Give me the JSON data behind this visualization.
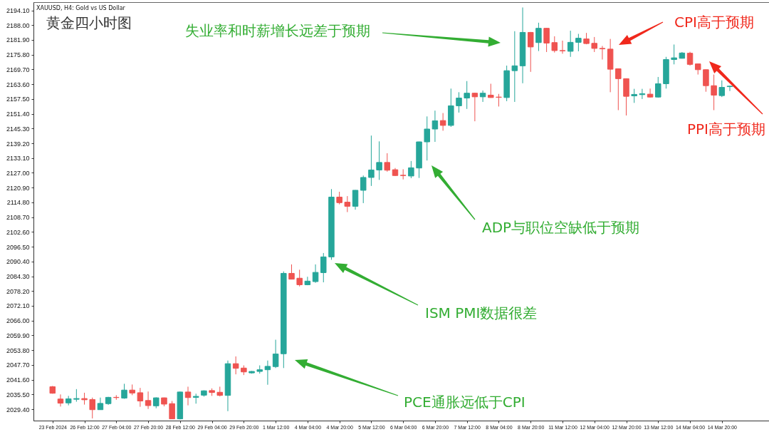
{
  "chart_data": {
    "type": "candlestick",
    "title": "黄金四小时图",
    "subtitle": "XAUUSD, H4: Gold vs US Dollar",
    "categories": [
      "23 Feb 2024",
      null,
      null,
      null,
      "26 Feb 12:00",
      null,
      null,
      null,
      "27 Feb 04:00",
      null,
      null,
      null,
      "27 Feb 20:00",
      null,
      null,
      null,
      "28 Feb 12:00",
      null,
      null,
      null,
      "29 Feb 04:00",
      null,
      null,
      null,
      "29 Feb 20:00",
      null,
      null,
      null,
      "1 Mar 12:00",
      null,
      null,
      null,
      "4 Mar 04:00",
      null,
      null,
      null,
      "4 Mar 20:00",
      null,
      null,
      null,
      "5 Mar 12:00",
      null,
      null,
      null,
      "6 Mar 04:00",
      null,
      null,
      null,
      "6 Mar 20:00",
      null,
      null,
      null,
      "7 Mar 12:00",
      null,
      null,
      null,
      "8 Mar 04:00",
      null,
      null,
      null,
      "8 Mar 20:00",
      null,
      null,
      null,
      "11 Mar 12:00",
      null,
      null,
      null,
      "12 Mar 04:00",
      null,
      null,
      null,
      "12 Mar 20:00",
      null,
      null,
      null,
      "13 Mar 12:00",
      null,
      null,
      null,
      "14 Mar 04:00",
      null,
      null,
      null,
      "14 Mar 20:00",
      null
    ],
    "ohlc": [
      [
        2038.7,
        2039.0,
        2035.8,
        2036.0
      ],
      [
        2033.6,
        2035.5,
        2030.5,
        2031.9
      ],
      [
        2032.0,
        2034.9,
        2031.0,
        2033.7
      ],
      [
        2033.5,
        2037.7,
        2032.5,
        2033.8
      ],
      [
        2033.8,
        2036.2,
        2031.3,
        2033.3
      ],
      [
        2033.4,
        2034.2,
        2025.6,
        2029.2
      ],
      [
        2029.2,
        2034.2,
        2029.2,
        2031.8
      ],
      [
        2031.7,
        2034.5,
        2031.2,
        2034.3
      ],
      [
        2034.3,
        2035.2,
        2033.3,
        2034.2
      ],
      [
        2034.0,
        2039.9,
        2033.7,
        2037.3
      ],
      [
        2037.3,
        2039.6,
        2035.2,
        2036.1
      ],
      [
        2036.2,
        2038.2,
        2030.4,
        2032.8
      ],
      [
        2033.0,
        2036.7,
        2029.5,
        2030.9
      ],
      [
        2030.8,
        2034.3,
        2029.8,
        2034.1
      ],
      [
        2034.1,
        2034.2,
        2030.6,
        2031.5
      ],
      [
        2031.7,
        2032.8,
        2025.3,
        2025.4
      ],
      [
        2025.4,
        2036.7,
        2025.2,
        2036.5
      ],
      [
        2036.5,
        2038.7,
        2031.0,
        2034.2
      ],
      [
        2034.3,
        2035.8,
        2031.7,
        2034.7
      ],
      [
        2035.2,
        2037.2,
        2034.6,
        2037.0
      ],
      [
        2037.1,
        2038.0,
        2034.9,
        2036.3
      ],
      [
        2036.4,
        2038.7,
        2034.7,
        2035.1
      ],
      [
        2035.1,
        2049.5,
        2028.6,
        2048.2
      ],
      [
        2048.2,
        2051.2,
        2043.8,
        2046.3
      ],
      [
        2046.4,
        2047.5,
        2043.5,
        2044.8
      ],
      [
        2044.4,
        2045.2,
        2044.1,
        2045.0
      ],
      [
        2045.0,
        2047.5,
        2044.1,
        2045.7
      ],
      [
        2045.7,
        2049.5,
        2039.5,
        2047.1
      ],
      [
        2047.0,
        2058.1,
        2046.4,
        2052.2
      ],
      [
        2052.3,
        2086.3,
        2046.4,
        2085.5
      ],
      [
        2085.5,
        2089.2,
        2083.0,
        2083.1
      ],
      [
        2083.5,
        2087.0,
        2080.1,
        2080.8
      ],
      [
        2080.8,
        2084.1,
        2080.6,
        2082.3
      ],
      [
        2082.1,
        2089.2,
        2081.6,
        2085.9
      ],
      [
        2085.8,
        2093.9,
        2081.8,
        2092.3
      ],
      [
        2092.3,
        2120.3,
        2091.1,
        2117.0
      ],
      [
        2117.0,
        2119.2,
        2114.0,
        2114.7
      ],
      [
        2114.9,
        2117.4,
        2110.8,
        2113.2
      ],
      [
        2113.2,
        2119.9,
        2111.8,
        2119.8
      ],
      [
        2119.8,
        2125.9,
        2114.5,
        2125.1
      ],
      [
        2125.1,
        2142.4,
        2121.6,
        2128.2
      ],
      [
        2128.2,
        2140.0,
        2124.1,
        2131.3
      ],
      [
        2131.3,
        2135.1,
        2127.5,
        2128.1
      ],
      [
        2128.3,
        2129.0,
        2125.7,
        2125.9
      ],
      [
        2126.0,
        2128.5,
        2124.3,
        2125.9
      ],
      [
        2125.7,
        2131.9,
        2124.8,
        2129.1
      ],
      [
        2129.0,
        2139.9,
        2124.9,
        2139.8
      ],
      [
        2139.8,
        2150.3,
        2132.1,
        2145.1
      ],
      [
        2145.1,
        2152.7,
        2139.8,
        2148.5
      ],
      [
        2148.6,
        2151.7,
        2144.4,
        2146.6
      ],
      [
        2146.6,
        2161.8,
        2146.0,
        2154.7
      ],
      [
        2154.7,
        2160.3,
        2151.9,
        2157.9
      ],
      [
        2157.9,
        2164.9,
        2153.4,
        2159.9
      ],
      [
        2159.9,
        2160.1,
        2148.3,
        2158.4
      ],
      [
        2158.4,
        2161.0,
        2156.3,
        2159.9
      ],
      [
        2159.1,
        2163.8,
        2158.0,
        2158.1
      ],
      [
        2158.3,
        2159.6,
        2154.4,
        2158.2
      ],
      [
        2158.1,
        2171.3,
        2156.6,
        2169.2
      ],
      [
        2169.2,
        2185.5,
        2156.3,
        2171.2
      ],
      [
        2171.2,
        2195.3,
        2164.0,
        2185.0
      ],
      [
        2185.0,
        2185.2,
        2168.7,
        2179.0
      ],
      [
        2180.8,
        2189.0,
        2177.3,
        2186.7
      ],
      [
        2186.7,
        2186.8,
        2176.9,
        2180.6
      ],
      [
        2180.8,
        2183.4,
        2176.7,
        2177.5
      ],
      [
        2177.5,
        2181.6,
        2176.2,
        2177.4
      ],
      [
        2177.2,
        2185.7,
        2174.9,
        2180.9
      ],
      [
        2180.9,
        2184.4,
        2177.2,
        2182.6
      ],
      [
        2182.3,
        2184.8,
        2180.1,
        2180.4
      ],
      [
        2180.5,
        2183.1,
        2176.9,
        2178.4
      ],
      [
        2178.4,
        2179.4,
        2173.8,
        2178.2
      ],
      [
        2178.1,
        2182.3,
        2160.3,
        2169.8
      ],
      [
        2170.0,
        2170.1,
        2152.9,
        2165.9
      ],
      [
        2165.9,
        2166.0,
        2150.7,
        2158.6
      ],
      [
        2158.8,
        2161.7,
        2155.9,
        2159.4
      ],
      [
        2159.3,
        2161.7,
        2157.5,
        2159.7
      ],
      [
        2159.5,
        2161.8,
        2158.1,
        2158.3
      ],
      [
        2158.3,
        2166.6,
        2158.1,
        2163.8
      ],
      [
        2163.8,
        2174.9,
        2161.8,
        2173.8
      ],
      [
        2173.8,
        2180.0,
        2171.8,
        2174.5
      ],
      [
        2174.3,
        2176.9,
        2174.2,
        2176.5
      ],
      [
        2176.4,
        2177.0,
        2171.3,
        2171.8
      ],
      [
        2172.0,
        2172.1,
        2167.6,
        2169.6
      ],
      [
        2169.6,
        2169.7,
        2160.5,
        2163.0
      ],
      [
        2163.0,
        2167.6,
        2152.9,
        2159.1
      ],
      [
        2158.9,
        2165.2,
        2158.3,
        2162.3
      ],
      [
        2162.6,
        2163.0,
        2160.8,
        2162.8
      ]
    ],
    "colors": [
      "#ef5350",
      "#ef5350",
      "#26a69a",
      "#26a69a",
      "#ef5350",
      "#ef5350",
      "#26a69a",
      "#26a69a",
      "#ef5350",
      "#26a69a",
      "#ef5350",
      "#ef5350",
      "#ef5350",
      "#26a69a",
      "#ef5350",
      "#ef5350",
      "#26a69a",
      "#ef5350",
      "#26a69a",
      "#26a69a",
      "#ef5350",
      "#ef5350",
      "#26a69a",
      "#ef5350",
      "#ef5350",
      "#26a69a",
      "#26a69a",
      "#26a69a",
      "#26a69a",
      "#26a69a",
      "#ef5350",
      "#ef5350",
      "#26a69a",
      "#26a69a",
      "#26a69a",
      "#26a69a",
      "#ef5350",
      "#ef5350",
      "#26a69a",
      "#26a69a",
      "#26a69a",
      "#26a69a",
      "#ef5350",
      "#ef5350",
      "#ef5350",
      "#26a69a",
      "#26a69a",
      "#26a69a",
      "#26a69a",
      "#ef5350",
      "#26a69a",
      "#26a69a",
      "#26a69a",
      "#ef5350",
      "#26a69a",
      "#ef5350",
      "#ef5350",
      "#26a69a",
      "#26a69a",
      "#26a69a",
      "#ef5350",
      "#26a69a",
      "#ef5350",
      "#ef5350",
      "#ef5350",
      "#26a69a",
      "#26a69a",
      "#ef5350",
      "#ef5350",
      "#ef5350",
      "#ef5350",
      "#ef5350",
      "#ef5350",
      "#26a69a",
      "#26a69a",
      "#ef5350",
      "#26a69a",
      "#26a69a",
      "#26a69a",
      "#26a69a",
      "#ef5350",
      "#ef5350",
      "#ef5350",
      "#ef5350",
      "#26a69a",
      "#26a69a"
    ],
    "ylim": [
      2024.7,
      2197.5
    ],
    "yticks": [
      {
        "value": 2029.4,
        "label": "2029.40"
      },
      {
        "value": 2035.5,
        "label": "2035.50"
      },
      {
        "value": 2041.6,
        "label": "2041.60"
      },
      {
        "value": 2047.7,
        "label": "2047.70"
      },
      {
        "value": 2053.8,
        "label": "2053.80"
      },
      {
        "value": 2059.9,
        "label": "2059.90"
      },
      {
        "value": 2066.0,
        "label": "2066.00"
      },
      {
        "value": 2072.1,
        "label": "2072.10"
      },
      {
        "value": 2078.2,
        "label": "2078.20"
      },
      {
        "value": 2084.3,
        "label": "2084.30"
      },
      {
        "value": 2090.4,
        "label": "2090.40"
      },
      {
        "value": 2096.5,
        "label": "2096.50"
      },
      {
        "value": 2102.6,
        "label": "2102.60"
      },
      {
        "value": 2108.7,
        "label": "2108.70"
      },
      {
        "value": 2114.8,
        "label": "2114.80"
      },
      {
        "value": 2120.9,
        "label": "2120.90"
      },
      {
        "value": 2127.0,
        "label": "2127.00"
      },
      {
        "value": 2133.1,
        "label": "2133.10"
      },
      {
        "value": 2139.2,
        "label": "2139.20"
      },
      {
        "value": 2145.3,
        "label": "2145.30"
      },
      {
        "value": 2151.4,
        "label": "2151.40"
      },
      {
        "value": 2157.5,
        "label": "2157.50"
      },
      {
        "value": 2163.6,
        "label": "2163.60"
      },
      {
        "value": 2169.7,
        "label": "2169.70"
      },
      {
        "value": 2175.8,
        "label": "2175.80"
      },
      {
        "value": 2181.9,
        "label": "2181.90"
      },
      {
        "value": 2188.0,
        "label": "2188.00"
      },
      {
        "value": 2194.1,
        "label": "2194.10"
      }
    ],
    "annotations": [
      "CPI高于预期",
      "失业率和时薪增长远差于预期",
      "PPI高于预期",
      "ADP与职位空缺低于预期",
      "ISM PMI数据很差",
      "PCE通胀远低于CPI"
    ]
  }
}
